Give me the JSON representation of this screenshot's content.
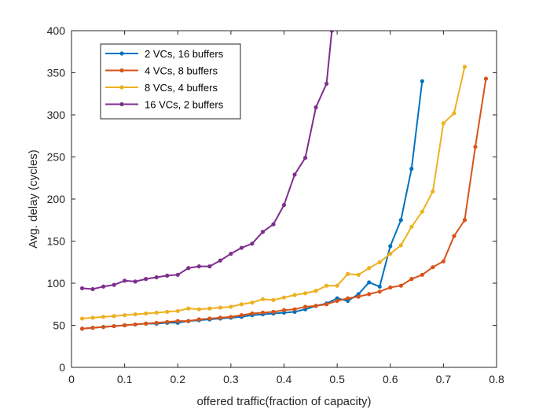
{
  "chart_data": {
    "type": "line",
    "title": "",
    "xlabel": "offered traffic(fraction of capacity)",
    "ylabel": "Avg. delay (cycles)",
    "xlim": [
      0,
      0.8
    ],
    "ylim": [
      0,
      400
    ],
    "xticks": [
      0,
      0.1,
      0.2,
      0.3,
      0.4,
      0.5,
      0.6,
      0.7,
      0.8
    ],
    "yticks": [
      0,
      50,
      100,
      150,
      200,
      250,
      300,
      350,
      400
    ],
    "xtick_labels": [
      "0",
      "0.1",
      "0.2",
      "0.3",
      "0.4",
      "0.5",
      "0.6",
      "0.7",
      "0.8"
    ],
    "ytick_labels": [
      "0",
      "50",
      "100",
      "150",
      "200",
      "250",
      "300",
      "350",
      "400"
    ],
    "grid": false,
    "legend_position": "top-left",
    "series": [
      {
        "name": "2 VCs, 16 buffers",
        "color": "#0072BD",
        "x": [
          0.02,
          0.04,
          0.06,
          0.08,
          0.1,
          0.12,
          0.14,
          0.16,
          0.18,
          0.2,
          0.22,
          0.24,
          0.26,
          0.28,
          0.3,
          0.32,
          0.34,
          0.36,
          0.38,
          0.4,
          0.42,
          0.44,
          0.46,
          0.48,
          0.5,
          0.52,
          0.54,
          0.56,
          0.58,
          0.6,
          0.62,
          0.64,
          0.66
        ],
        "y": [
          46,
          47,
          48,
          49,
          50,
          51,
          52,
          52,
          53,
          53,
          55,
          56,
          57,
          58,
          59,
          60,
          62,
          63,
          64,
          65,
          66,
          69,
          73,
          76,
          82,
          79,
          87,
          101,
          96,
          144,
          175,
          236,
          340
        ]
      },
      {
        "name": "4 VCs, 8 buffers",
        "color": "#D95319",
        "x": [
          0.02,
          0.04,
          0.06,
          0.08,
          0.1,
          0.12,
          0.14,
          0.16,
          0.18,
          0.2,
          0.22,
          0.24,
          0.26,
          0.28,
          0.3,
          0.32,
          0.34,
          0.36,
          0.38,
          0.4,
          0.42,
          0.44,
          0.46,
          0.48,
          0.5,
          0.52,
          0.54,
          0.56,
          0.58,
          0.6,
          0.62,
          0.64,
          0.66,
          0.68,
          0.7,
          0.72,
          0.74,
          0.76,
          0.78
        ],
        "y": [
          46,
          47,
          48,
          49,
          50,
          51,
          52,
          53,
          54,
          55,
          55,
          57,
          58,
          59,
          60,
          62,
          64,
          65,
          66,
          68,
          69,
          72,
          73,
          75,
          79,
          82,
          84,
          87,
          90,
          95,
          97,
          105,
          110,
          119,
          126,
          156,
          175,
          262,
          343
        ]
      },
      {
        "name": "8 VCs, 4 buffers",
        "color": "#EDB120",
        "x": [
          0.02,
          0.04,
          0.06,
          0.08,
          0.1,
          0.12,
          0.14,
          0.16,
          0.18,
          0.2,
          0.22,
          0.24,
          0.26,
          0.28,
          0.3,
          0.32,
          0.34,
          0.36,
          0.38,
          0.4,
          0.42,
          0.44,
          0.46,
          0.48,
          0.5,
          0.52,
          0.54,
          0.56,
          0.58,
          0.6,
          0.62,
          0.64,
          0.66,
          0.68,
          0.7,
          0.72,
          0.74
        ],
        "y": [
          58,
          59,
          60,
          61,
          62,
          63,
          64,
          65,
          66,
          67,
          70,
          69,
          70,
          71,
          72,
          75,
          77,
          81,
          80,
          83,
          86,
          88,
          91,
          97,
          97,
          111,
          110,
          118,
          125,
          135,
          145,
          167,
          185,
          209,
          290,
          302,
          357
        ]
      },
      {
        "name": "16 VCs, 2 buffers",
        "color": "#7E2F8E",
        "x": [
          0.02,
          0.04,
          0.06,
          0.08,
          0.1,
          0.12,
          0.14,
          0.16,
          0.18,
          0.2,
          0.22,
          0.24,
          0.26,
          0.28,
          0.3,
          0.32,
          0.34,
          0.36,
          0.38,
          0.4,
          0.42,
          0.44,
          0.46,
          0.48,
          0.49
        ],
        "y": [
          94,
          93,
          96,
          98,
          103,
          102,
          105,
          107,
          109,
          110,
          118,
          120,
          120,
          127,
          135,
          142,
          147,
          161,
          170,
          193,
          229,
          249,
          309,
          337,
          400
        ]
      }
    ]
  }
}
